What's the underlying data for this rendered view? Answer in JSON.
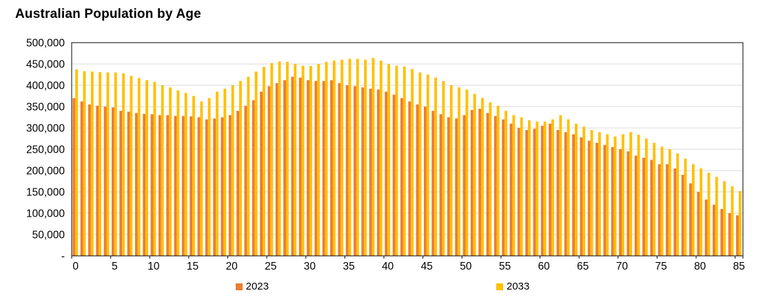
{
  "chart_data": {
    "type": "bar",
    "title": "Australian Population by Age",
    "xlabel": "",
    "ylabel": "",
    "grid": true,
    "legend_position": "bottom",
    "ylim": [
      0,
      500000
    ],
    "y_tick_interval": 50000,
    "y_tick_labels": [
      "-",
      "50,000",
      "100,000",
      "150,000",
      "200,000",
      "250,000",
      "300,000",
      "350,000",
      "400,000",
      "450,000",
      "500,000"
    ],
    "x_tick_labels": [
      "0",
      "5",
      "10",
      "15",
      "20",
      "25",
      "30",
      "35",
      "40",
      "45",
      "50",
      "55",
      "60",
      "65",
      "70",
      "75",
      "80",
      "85"
    ],
    "categories": [
      0,
      1,
      2,
      3,
      4,
      5,
      6,
      7,
      8,
      9,
      10,
      11,
      12,
      13,
      14,
      15,
      16,
      17,
      18,
      19,
      20,
      21,
      22,
      23,
      24,
      25,
      26,
      27,
      28,
      29,
      30,
      31,
      32,
      33,
      34,
      35,
      36,
      37,
      38,
      39,
      40,
      41,
      42,
      43,
      44,
      45,
      46,
      47,
      48,
      49,
      50,
      51,
      52,
      53,
      54,
      55,
      56,
      57,
      58,
      59,
      60,
      61,
      62,
      63,
      64,
      65,
      66,
      67,
      68,
      69,
      70,
      71,
      72,
      73,
      74,
      75,
      76,
      77,
      78,
      79,
      80,
      81,
      82,
      83,
      84,
      85
    ],
    "series": [
      {
        "name": "2023",
        "color": "#ED7D31",
        "values": [
          370000,
          362000,
          355000,
          352000,
          350000,
          348000,
          340000,
          338000,
          335000,
          333000,
          332000,
          330000,
          330000,
          328000,
          328000,
          327000,
          325000,
          320000,
          322000,
          325000,
          330000,
          340000,
          352000,
          365000,
          385000,
          398000,
          405000,
          412000,
          420000,
          418000,
          412000,
          410000,
          410000,
          412000,
          405000,
          400000,
          398000,
          395000,
          392000,
          390000,
          385000,
          378000,
          370000,
          362000,
          355000,
          350000,
          340000,
          332000,
          325000,
          322000,
          330000,
          342000,
          345000,
          335000,
          328000,
          320000,
          310000,
          300000,
          295000,
          298000,
          305000,
          310000,
          295000,
          290000,
          285000,
          278000,
          270000,
          265000,
          260000,
          255000,
          250000,
          245000,
          235000,
          230000,
          225000,
          215000,
          215000,
          205000,
          190000,
          170000,
          150000,
          132000,
          120000,
          110000,
          100000,
          95000
        ]
      },
      {
        "name": "2033",
        "color": "#FFC000",
        "values": [
          437000,
          433000,
          432000,
          431000,
          430000,
          430000,
          428000,
          422000,
          417000,
          412000,
          408000,
          400000,
          395000,
          388000,
          382000,
          375000,
          362000,
          370000,
          385000,
          392000,
          400000,
          410000,
          420000,
          432000,
          443000,
          452000,
          456000,
          455000,
          450000,
          446000,
          445000,
          450000,
          455000,
          458000,
          460000,
          462000,
          462000,
          460000,
          464000,
          458000,
          450000,
          446000,
          444000,
          438000,
          430000,
          425000,
          418000,
          410000,
          400000,
          395000,
          390000,
          380000,
          370000,
          360000,
          352000,
          340000,
          330000,
          325000,
          318000,
          315000,
          315000,
          320000,
          330000,
          320000,
          310000,
          303000,
          295000,
          290000,
          285000,
          280000,
          285000,
          290000,
          284000,
          275000,
          265000,
          256000,
          250000,
          240000,
          228000,
          215000,
          205000,
          195000,
          185000,
          175000,
          163000,
          152000
        ]
      }
    ],
    "colors": {
      "gridline": "#D9D9D9",
      "axis_border": "#000000",
      "text": "#000000"
    }
  }
}
